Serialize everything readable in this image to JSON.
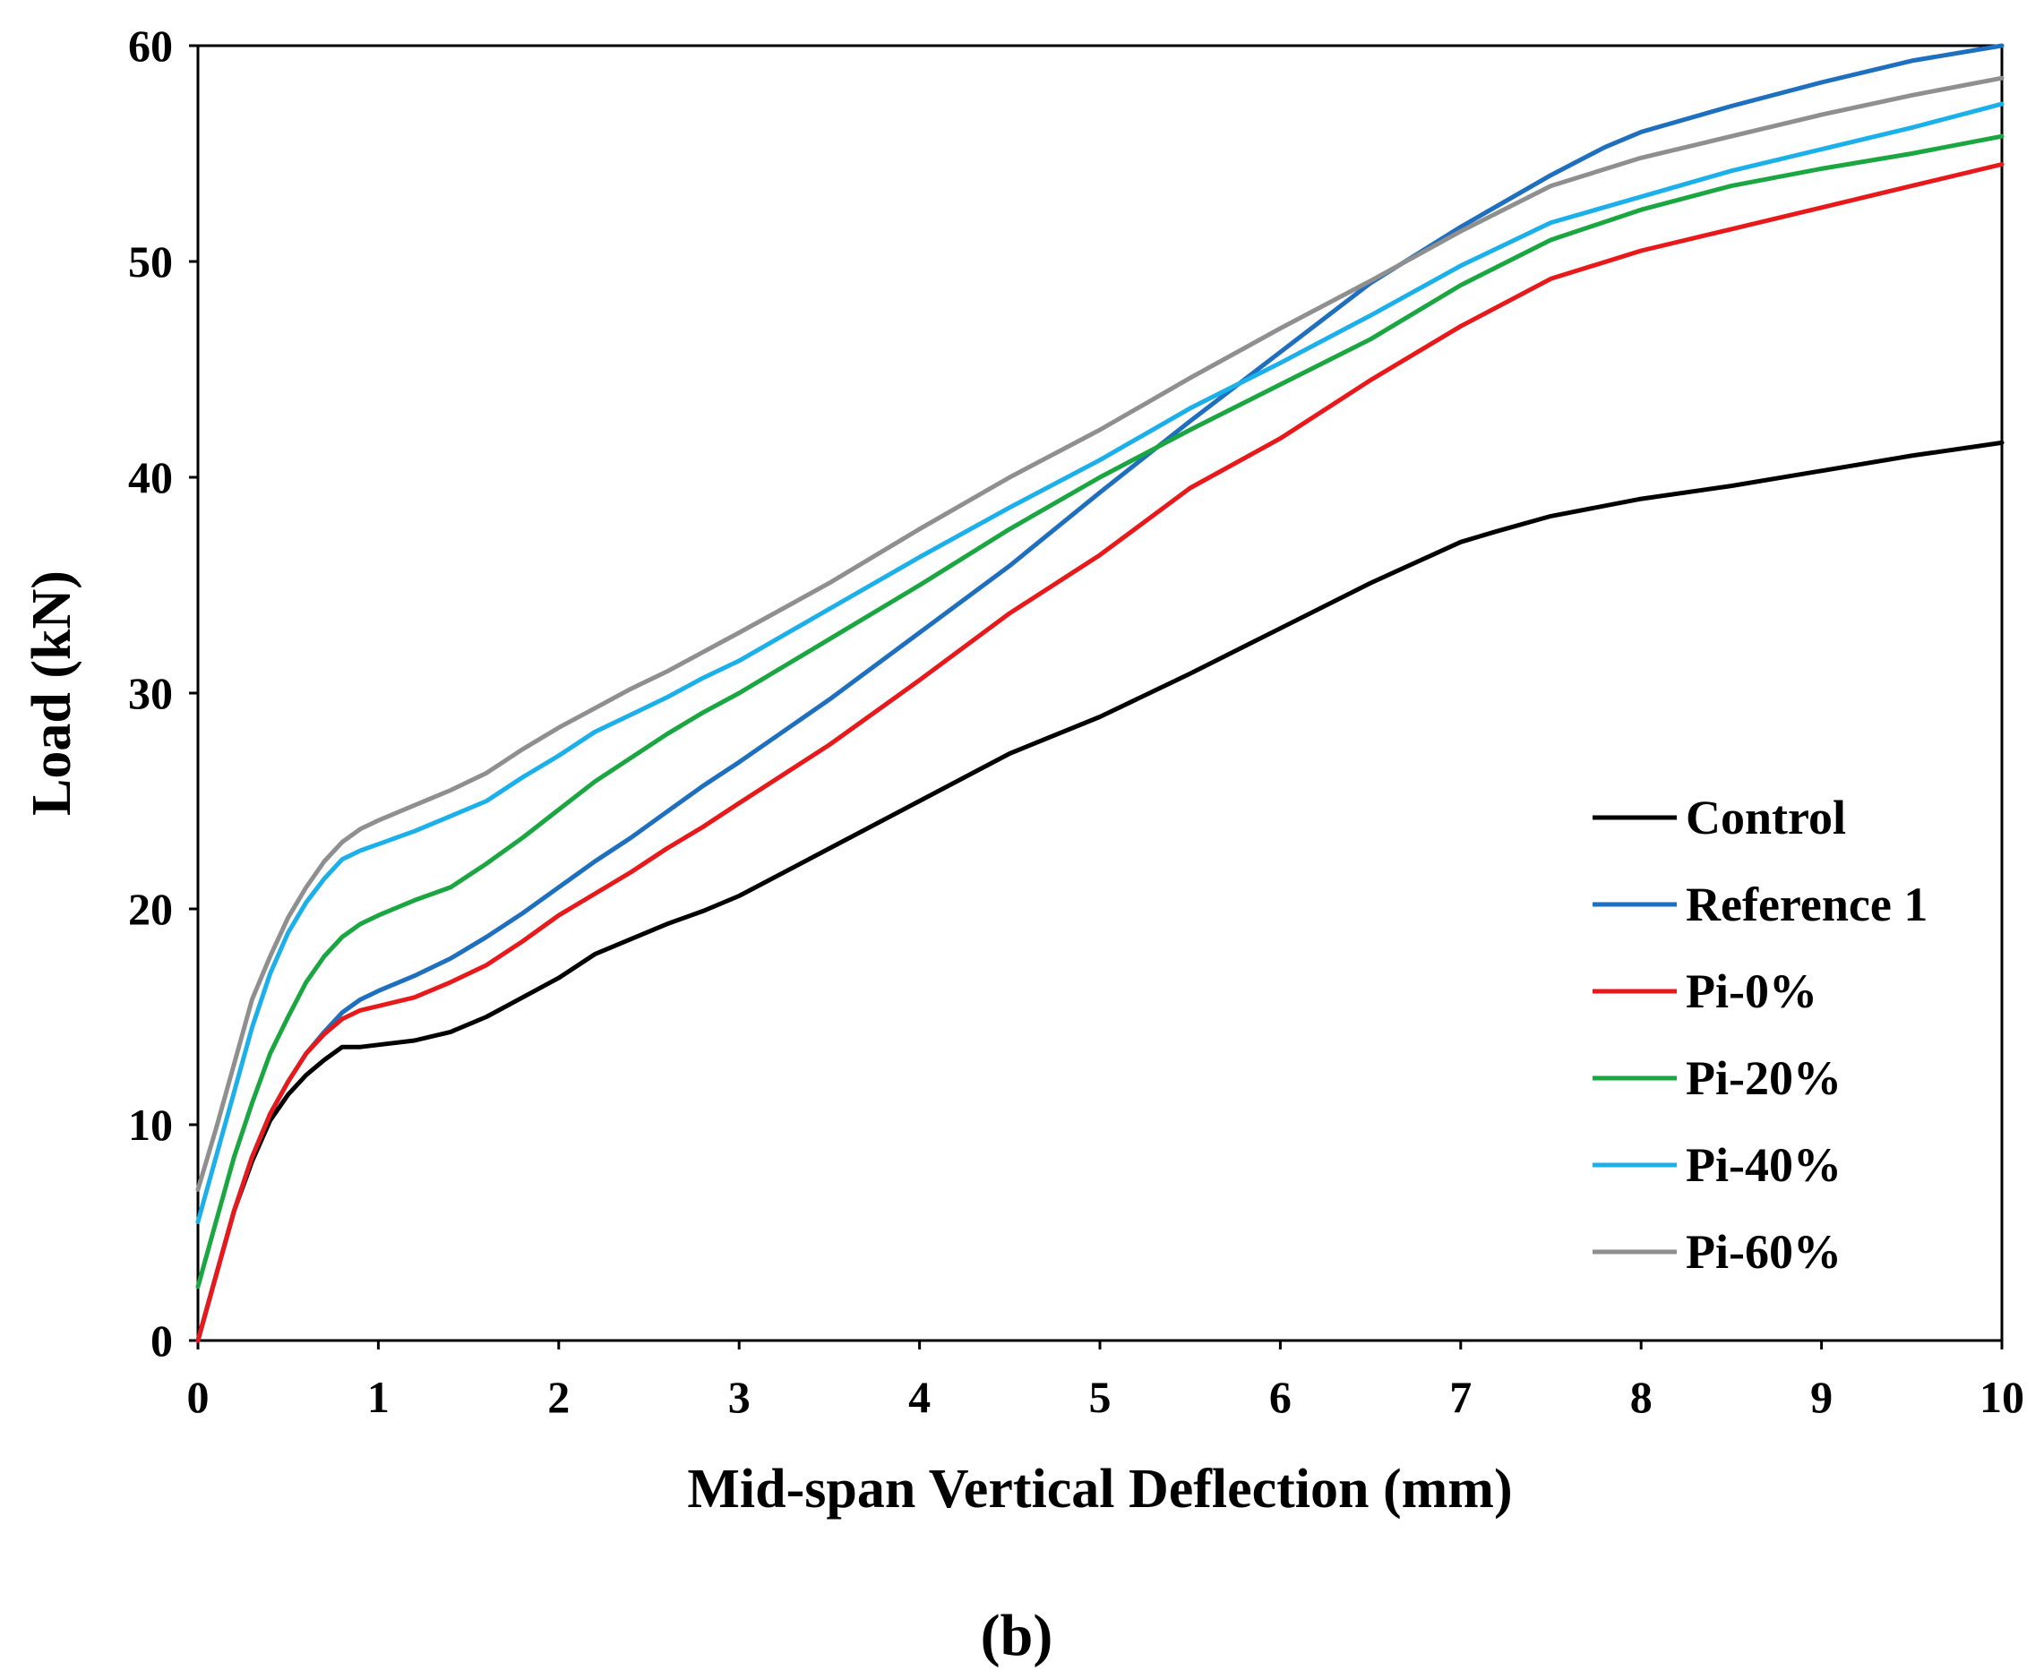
{
  "chart_data": {
    "type": "line",
    "title": "",
    "caption": "(b)",
    "xlabel": "Mid-span Vertical Deflection (mm)",
    "ylabel": "Load (kN)",
    "xlim": [
      0,
      10
    ],
    "ylim": [
      0,
      60
    ],
    "x_ticks": [
      0,
      1,
      2,
      3,
      4,
      5,
      6,
      7,
      8,
      9,
      10
    ],
    "y_ticks": [
      0,
      10,
      20,
      30,
      40,
      50,
      60
    ],
    "grid": false,
    "legend_position": "lower-right",
    "series": [
      {
        "name": "Control",
        "color": "#000000",
        "x": [
          0,
          0.1,
          0.2,
          0.3,
          0.4,
          0.5,
          0.6,
          0.7,
          0.8,
          0.9,
          1.0,
          1.2,
          1.4,
          1.6,
          1.8,
          2.0,
          2.2,
          2.4,
          2.6,
          2.8,
          3.0,
          3.5,
          4.0,
          4.5,
          5.0,
          5.5,
          6.0,
          6.5,
          7.0,
          7.2,
          7.5,
          8.0,
          8.5,
          9.0,
          9.5,
          10.0
        ],
        "y": [
          0,
          3,
          6,
          8.3,
          10.2,
          11.4,
          12.3,
          13.0,
          13.6,
          13.6,
          13.7,
          13.9,
          14.3,
          15.0,
          15.9,
          16.8,
          17.9,
          18.6,
          19.3,
          19.9,
          20.6,
          22.8,
          25.0,
          27.2,
          28.9,
          30.9,
          33.0,
          35.1,
          37.0,
          37.5,
          38.2,
          39.0,
          39.6,
          40.3,
          41.0,
          41.6
        ]
      },
      {
        "name": "Reference 1",
        "color": "#1f6fbf",
        "x": [
          0,
          0.1,
          0.2,
          0.3,
          0.4,
          0.5,
          0.6,
          0.7,
          0.8,
          0.9,
          1.0,
          1.2,
          1.4,
          1.6,
          1.8,
          2.0,
          2.2,
          2.4,
          2.6,
          2.8,
          3.0,
          3.5,
          4.0,
          4.5,
          5.0,
          5.5,
          6.0,
          6.5,
          7.0,
          7.5,
          7.8,
          8.0,
          8.5,
          9.0,
          9.5,
          10.0
        ],
        "y": [
          0,
          3,
          6,
          8.5,
          10.5,
          12.0,
          13.3,
          14.3,
          15.2,
          15.8,
          16.2,
          16.9,
          17.7,
          18.7,
          19.8,
          21.0,
          22.2,
          23.3,
          24.5,
          25.7,
          26.8,
          29.7,
          32.8,
          35.9,
          39.3,
          42.6,
          45.8,
          49.0,
          51.6,
          54.0,
          55.3,
          56.0,
          57.2,
          58.3,
          59.3,
          60.0
        ]
      },
      {
        "name": "Pi-0%",
        "color": "#e8191b",
        "x": [
          0,
          0.1,
          0.2,
          0.3,
          0.4,
          0.5,
          0.6,
          0.7,
          0.8,
          0.9,
          1.0,
          1.2,
          1.4,
          1.6,
          1.8,
          2.0,
          2.2,
          2.4,
          2.6,
          2.8,
          3.0,
          3.5,
          4.0,
          4.5,
          5.0,
          5.5,
          6.0,
          6.5,
          7.0,
          7.5,
          8.0,
          8.5,
          9.0,
          9.5,
          10.0
        ],
        "y": [
          0,
          3,
          6,
          8.5,
          10.5,
          12.0,
          13.3,
          14.2,
          14.9,
          15.3,
          15.5,
          15.9,
          16.6,
          17.4,
          18.5,
          19.7,
          20.7,
          21.7,
          22.8,
          23.8,
          24.9,
          27.6,
          30.6,
          33.7,
          36.4,
          39.5,
          41.8,
          44.5,
          47.0,
          49.2,
          50.5,
          51.5,
          52.5,
          53.5,
          54.5
        ]
      },
      {
        "name": "Pi-20%",
        "color": "#1aa640",
        "x": [
          0,
          0.1,
          0.2,
          0.3,
          0.4,
          0.5,
          0.6,
          0.7,
          0.8,
          0.9,
          1.0,
          1.2,
          1.4,
          1.6,
          1.8,
          2.0,
          2.2,
          2.4,
          2.6,
          2.8,
          3.0,
          3.5,
          4.0,
          4.5,
          5.0,
          5.5,
          6.0,
          6.5,
          7.0,
          7.5,
          8.0,
          8.5,
          9.0,
          9.5,
          10.0
        ],
        "y": [
          2.5,
          5.5,
          8.5,
          11.0,
          13.3,
          15.0,
          16.6,
          17.8,
          18.7,
          19.3,
          19.7,
          20.4,
          21.0,
          22.1,
          23.3,
          24.6,
          25.9,
          27.0,
          28.1,
          29.1,
          30.0,
          32.5,
          35.0,
          37.6,
          40.0,
          42.2,
          44.3,
          46.4,
          48.9,
          51.0,
          52.4,
          53.5,
          54.3,
          55.0,
          55.8
        ]
      },
      {
        "name": "Pi-40%",
        "color": "#1cb0ea",
        "x": [
          0,
          0.1,
          0.2,
          0.3,
          0.4,
          0.5,
          0.6,
          0.7,
          0.8,
          0.9,
          1.0,
          1.2,
          1.4,
          1.6,
          1.8,
          2.0,
          2.2,
          2.4,
          2.6,
          2.8,
          3.0,
          3.5,
          4.0,
          4.5,
          5.0,
          5.5,
          6.0,
          6.5,
          7.0,
          7.5,
          8.0,
          8.5,
          9.0,
          9.5,
          10.0
        ],
        "y": [
          5.5,
          8.5,
          11.5,
          14.5,
          17.0,
          18.9,
          20.3,
          21.4,
          22.3,
          22.7,
          23.0,
          23.6,
          24.3,
          25.0,
          26.1,
          27.1,
          28.2,
          29.0,
          29.8,
          30.7,
          31.5,
          33.9,
          36.3,
          38.6,
          40.8,
          43.2,
          45.3,
          47.5,
          49.8,
          51.8,
          53.0,
          54.2,
          55.2,
          56.2,
          57.3
        ]
      },
      {
        "name": "Pi-60%",
        "color": "#8f8f8f",
        "x": [
          0,
          0.1,
          0.2,
          0.3,
          0.4,
          0.5,
          0.6,
          0.7,
          0.8,
          0.9,
          1.0,
          1.2,
          1.4,
          1.6,
          1.8,
          2.0,
          2.2,
          2.4,
          2.6,
          2.8,
          3.0,
          3.5,
          4.0,
          4.5,
          5.0,
          5.5,
          6.0,
          6.5,
          7.0,
          7.5,
          8.0,
          8.5,
          9.0,
          9.5,
          10.0
        ],
        "y": [
          7.0,
          9.8,
          12.8,
          15.8,
          17.8,
          19.6,
          21.0,
          22.2,
          23.1,
          23.7,
          24.1,
          24.8,
          25.5,
          26.3,
          27.4,
          28.4,
          29.3,
          30.2,
          31.0,
          31.9,
          32.8,
          35.1,
          37.6,
          40.0,
          42.2,
          44.6,
          46.9,
          49.1,
          51.4,
          53.5,
          54.8,
          55.8,
          56.8,
          57.7,
          58.5
        ]
      }
    ]
  }
}
